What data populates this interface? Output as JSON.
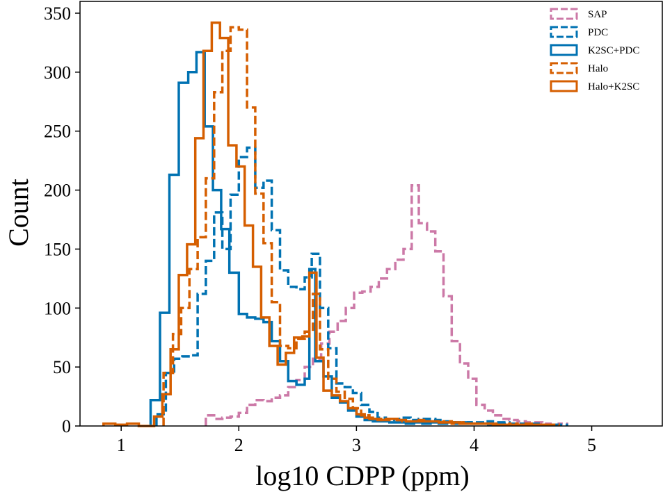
{
  "chart_data": {
    "type": "histogram",
    "xlabel": "log10 CDPP (ppm)",
    "ylabel": "Count",
    "xlim": [
      0.65,
      5.6
    ],
    "ylim": [
      0,
      360
    ],
    "xticks": [
      "1",
      "2",
      "3",
      "4",
      "5"
    ],
    "yticks": [
      "0",
      "50",
      "100",
      "150",
      "200",
      "250",
      "300",
      "350"
    ],
    "legend_position": "upper-right",
    "series": [
      {
        "name": "SAP",
        "color": "#cc79a7",
        "style": "dashed",
        "steps": [
          [
            1.72,
            0
          ],
          [
            1.72,
            9
          ],
          [
            1.79,
            6
          ],
          [
            1.86,
            7
          ],
          [
            1.93,
            8
          ],
          [
            2.0,
            11
          ],
          [
            2.07,
            18
          ],
          [
            2.14,
            22
          ],
          [
            2.21,
            21
          ],
          [
            2.28,
            24
          ],
          [
            2.35,
            26
          ],
          [
            2.42,
            33
          ],
          [
            2.49,
            39
          ],
          [
            2.56,
            50
          ],
          [
            2.63,
            57
          ],
          [
            2.7,
            70
          ],
          [
            2.77,
            80
          ],
          [
            2.84,
            89
          ],
          [
            2.91,
            100
          ],
          [
            2.98,
            113
          ],
          [
            3.05,
            114
          ],
          [
            3.12,
            118
          ],
          [
            3.19,
            125
          ],
          [
            3.26,
            133
          ],
          [
            3.33,
            141
          ],
          [
            3.4,
            150
          ],
          [
            3.47,
            204
          ],
          [
            3.53,
            172
          ],
          [
            3.6,
            165
          ],
          [
            3.67,
            148
          ],
          [
            3.74,
            110
          ],
          [
            3.81,
            72
          ],
          [
            3.88,
            53
          ],
          [
            3.95,
            40
          ],
          [
            4.02,
            18
          ],
          [
            4.09,
            13
          ],
          [
            4.16,
            9
          ],
          [
            4.23,
            6
          ],
          [
            4.3,
            5
          ],
          [
            4.37,
            4
          ],
          [
            4.44,
            3
          ],
          [
            4.51,
            3
          ],
          [
            4.58,
            2
          ],
          [
            4.65,
            1
          ],
          [
            4.72,
            2
          ],
          [
            4.79,
            0
          ]
        ]
      },
      {
        "name": "PDC",
        "color": "#0072b2",
        "style": "dashed",
        "steps": [
          [
            1.3,
            0
          ],
          [
            1.3,
            10
          ],
          [
            1.38,
            45
          ],
          [
            1.45,
            57
          ],
          [
            1.52,
            59
          ],
          [
            1.59,
            60
          ],
          [
            1.65,
            112
          ],
          [
            1.72,
            140
          ],
          [
            1.79,
            181
          ],
          [
            1.86,
            150
          ],
          [
            1.93,
            196
          ],
          [
            2.0,
            228
          ],
          [
            2.07,
            236
          ],
          [
            2.14,
            202
          ],
          [
            2.21,
            208
          ],
          [
            2.28,
            166
          ],
          [
            2.35,
            132
          ],
          [
            2.42,
            118
          ],
          [
            2.49,
            116
          ],
          [
            2.56,
            126
          ],
          [
            2.62,
            146
          ],
          [
            2.69,
            100
          ],
          [
            2.76,
            66
          ],
          [
            2.83,
            36
          ],
          [
            2.9,
            33
          ],
          [
            2.97,
            28
          ],
          [
            3.04,
            18
          ],
          [
            3.11,
            12
          ],
          [
            3.18,
            7
          ],
          [
            3.25,
            5
          ],
          [
            3.32,
            6
          ],
          [
            3.39,
            7
          ],
          [
            3.46,
            5
          ],
          [
            3.53,
            6
          ],
          [
            3.6,
            6
          ],
          [
            3.67,
            5
          ],
          [
            3.74,
            4
          ],
          [
            3.81,
            3
          ],
          [
            3.88,
            2
          ],
          [
            3.95,
            3
          ],
          [
            4.02,
            3
          ],
          [
            4.09,
            4
          ],
          [
            4.16,
            3
          ],
          [
            4.23,
            3
          ],
          [
            4.3,
            2
          ],
          [
            4.37,
            2
          ],
          [
            4.44,
            2
          ],
          [
            4.51,
            2
          ],
          [
            4.58,
            1
          ],
          [
            4.65,
            1
          ],
          [
            4.72,
            1
          ],
          [
            4.79,
            0
          ]
        ]
      },
      {
        "name": "K2SC+PDC",
        "color": "#0072b2",
        "style": "solid",
        "steps": [
          [
            1.25,
            0
          ],
          [
            1.25,
            22
          ],
          [
            1.33,
            96
          ],
          [
            1.41,
            213
          ],
          [
            1.49,
            291
          ],
          [
            1.57,
            300
          ],
          [
            1.64,
            317
          ],
          [
            1.71,
            254
          ],
          [
            1.78,
            200
          ],
          [
            1.85,
            167
          ],
          [
            1.92,
            130
          ],
          [
            2.0,
            95
          ],
          [
            2.07,
            92
          ],
          [
            2.14,
            91
          ],
          [
            2.21,
            88
          ],
          [
            2.28,
            72
          ],
          [
            2.35,
            55
          ],
          [
            2.42,
            38
          ],
          [
            2.49,
            35
          ],
          [
            2.56,
            40
          ],
          [
            2.6,
            133
          ],
          [
            2.65,
            55
          ],
          [
            2.72,
            42
          ],
          [
            2.79,
            24
          ],
          [
            2.86,
            20
          ],
          [
            2.93,
            13
          ],
          [
            3.0,
            8
          ],
          [
            3.07,
            5
          ],
          [
            3.14,
            4
          ],
          [
            3.21,
            4
          ],
          [
            3.28,
            3
          ],
          [
            3.35,
            3
          ],
          [
            3.42,
            2
          ],
          [
            3.49,
            3
          ],
          [
            3.56,
            2
          ],
          [
            3.63,
            3
          ],
          [
            3.7,
            2
          ],
          [
            3.77,
            3
          ],
          [
            3.84,
            2
          ],
          [
            3.91,
            3
          ],
          [
            3.98,
            2
          ],
          [
            4.05,
            2
          ],
          [
            4.12,
            1
          ],
          [
            4.19,
            2
          ],
          [
            4.26,
            1
          ],
          [
            4.33,
            1
          ],
          [
            4.4,
            1
          ],
          [
            4.47,
            1
          ],
          [
            4.54,
            0
          ]
        ]
      },
      {
        "name": "Halo",
        "color": "#d55e00",
        "style": "dashed",
        "steps": [
          [
            1.36,
            0
          ],
          [
            1.36,
            45
          ],
          [
            1.44,
            78
          ],
          [
            1.51,
            100
          ],
          [
            1.58,
            133
          ],
          [
            1.65,
            160
          ],
          [
            1.72,
            210
          ],
          [
            1.79,
            283
          ],
          [
            1.86,
            318
          ],
          [
            1.93,
            338
          ],
          [
            2.0,
            336
          ],
          [
            2.07,
            270
          ],
          [
            2.14,
            197
          ],
          [
            2.21,
            155
          ],
          [
            2.28,
            105
          ],
          [
            2.35,
            68
          ],
          [
            2.42,
            66
          ],
          [
            2.49,
            74
          ],
          [
            2.56,
            80
          ],
          [
            2.63,
            112
          ],
          [
            2.69,
            65
          ],
          [
            2.76,
            40
          ],
          [
            2.83,
            29
          ],
          [
            2.9,
            23
          ],
          [
            2.97,
            15
          ],
          [
            3.04,
            9
          ],
          [
            3.11,
            6
          ],
          [
            3.18,
            5
          ],
          [
            3.25,
            6
          ],
          [
            3.32,
            5
          ],
          [
            3.39,
            4
          ],
          [
            3.46,
            4
          ],
          [
            3.53,
            5
          ],
          [
            3.6,
            4
          ],
          [
            3.67,
            3
          ],
          [
            3.74,
            4
          ],
          [
            3.81,
            2
          ],
          [
            3.88,
            2
          ],
          [
            3.95,
            2
          ],
          [
            4.02,
            2
          ],
          [
            4.09,
            2
          ],
          [
            4.16,
            1
          ],
          [
            4.23,
            1
          ],
          [
            4.3,
            2
          ],
          [
            4.37,
            1
          ],
          [
            4.44,
            2
          ],
          [
            4.51,
            1
          ],
          [
            4.58,
            1
          ],
          [
            4.65,
            1
          ],
          [
            4.72,
            0
          ]
        ]
      },
      {
        "name": "Halo+K2SC",
        "color": "#d55e00",
        "style": "solid",
        "steps": [
          [
            0.85,
            0
          ],
          [
            0.85,
            2
          ],
          [
            0.95,
            1
          ],
          [
            1.05,
            2
          ],
          [
            1.15,
            0
          ],
          [
            1.28,
            0
          ],
          [
            1.28,
            8
          ],
          [
            1.35,
            27
          ],
          [
            1.42,
            65
          ],
          [
            1.49,
            128
          ],
          [
            1.56,
            154
          ],
          [
            1.63,
            244
          ],
          [
            1.7,
            318
          ],
          [
            1.77,
            342
          ],
          [
            1.84,
            329
          ],
          [
            1.91,
            238
          ],
          [
            1.98,
            220
          ],
          [
            2.05,
            170
          ],
          [
            2.12,
            135
          ],
          [
            2.19,
            92
          ],
          [
            2.26,
            68
          ],
          [
            2.33,
            52
          ],
          [
            2.4,
            62
          ],
          [
            2.47,
            75
          ],
          [
            2.54,
            76
          ],
          [
            2.6,
            130
          ],
          [
            2.66,
            58
          ],
          [
            2.72,
            30
          ],
          [
            2.79,
            26
          ],
          [
            2.86,
            21
          ],
          [
            2.93,
            15
          ],
          [
            3.0,
            10
          ],
          [
            3.07,
            7
          ],
          [
            3.14,
            6
          ],
          [
            3.21,
            5
          ],
          [
            3.28,
            6
          ],
          [
            3.35,
            5
          ],
          [
            3.42,
            4
          ],
          [
            3.49,
            4
          ],
          [
            3.56,
            4
          ],
          [
            3.63,
            4
          ],
          [
            3.7,
            3
          ],
          [
            3.77,
            3
          ],
          [
            3.84,
            3
          ],
          [
            3.91,
            2
          ],
          [
            3.98,
            2
          ],
          [
            4.05,
            2
          ],
          [
            4.12,
            2
          ],
          [
            4.19,
            1
          ],
          [
            4.26,
            1
          ],
          [
            4.33,
            1
          ],
          [
            4.4,
            1
          ],
          [
            4.47,
            1
          ],
          [
            4.54,
            1
          ],
          [
            4.61,
            1
          ],
          [
            4.68,
            0
          ]
        ]
      }
    ]
  }
}
